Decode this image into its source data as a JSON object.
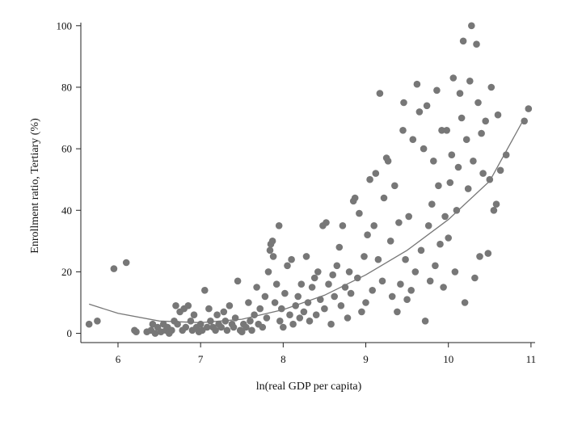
{
  "chart_data": {
    "type": "scatter",
    "title": "",
    "xlabel": "ln(real GDP per capita)",
    "ylabel": "Enrollment ratio, Tertiary (%)",
    "xlim": [
      5.55,
      11.05
    ],
    "ylim": [
      -3,
      101
    ],
    "xticks": [
      6,
      7,
      8,
      9,
      10,
      11
    ],
    "yticks": [
      0,
      20,
      40,
      60,
      80,
      100
    ],
    "grid": false,
    "legend": "none",
    "colors": {
      "points": "#777777",
      "fit_line": "#777777",
      "axes": "#222222"
    },
    "fit": {
      "type": "quadratic",
      "points": [
        [
          5.65,
          9.5
        ],
        [
          6.0,
          6.5
        ],
        [
          6.5,
          4.0
        ],
        [
          7.0,
          3.5
        ],
        [
          7.5,
          4.6
        ],
        [
          8.0,
          7.7
        ],
        [
          8.5,
          12.4
        ],
        [
          9.0,
          19.0
        ],
        [
          9.5,
          27.0
        ],
        [
          10.0,
          37.0
        ],
        [
          10.5,
          49.5
        ],
        [
          10.9,
          69.0
        ]
      ]
    },
    "series": [
      {
        "points": [
          [
            5.65,
            3
          ],
          [
            5.75,
            4
          ],
          [
            5.95,
            21
          ],
          [
            6.1,
            23
          ],
          [
            6.2,
            1
          ],
          [
            6.22,
            0.5
          ],
          [
            6.35,
            0.5
          ],
          [
            6.4,
            1
          ],
          [
            6.42,
            3
          ],
          [
            6.45,
            0
          ],
          [
            6.48,
            2
          ],
          [
            6.52,
            0.5
          ],
          [
            6.55,
            3
          ],
          [
            6.58,
            1
          ],
          [
            6.6,
            2
          ],
          [
            6.62,
            0
          ],
          [
            6.65,
            1
          ],
          [
            6.68,
            4
          ],
          [
            6.7,
            9
          ],
          [
            6.72,
            3
          ],
          [
            6.75,
            7
          ],
          [
            6.78,
            1
          ],
          [
            6.8,
            8
          ],
          [
            6.82,
            2
          ],
          [
            6.85,
            9
          ],
          [
            6.88,
            4
          ],
          [
            6.9,
            1
          ],
          [
            6.92,
            6
          ],
          [
            6.95,
            2
          ],
          [
            6.98,
            0.5
          ],
          [
            7.0,
            3
          ],
          [
            7.02,
            1
          ],
          [
            7.05,
            14
          ],
          [
            7.08,
            2
          ],
          [
            7.1,
            8
          ],
          [
            7.12,
            4
          ],
          [
            7.15,
            2
          ],
          [
            7.18,
            1
          ],
          [
            7.2,
            6
          ],
          [
            7.22,
            3
          ],
          [
            7.25,
            2
          ],
          [
            7.28,
            7
          ],
          [
            7.3,
            4
          ],
          [
            7.32,
            1
          ],
          [
            7.35,
            9
          ],
          [
            7.38,
            3
          ],
          [
            7.4,
            2
          ],
          [
            7.42,
            5
          ],
          [
            7.45,
            17
          ],
          [
            7.48,
            1
          ],
          [
            7.5,
            0.5
          ],
          [
            7.52,
            3
          ],
          [
            7.55,
            2
          ],
          [
            7.58,
            10
          ],
          [
            7.6,
            4
          ],
          [
            7.62,
            1
          ],
          [
            7.65,
            6
          ],
          [
            7.68,
            15
          ],
          [
            7.7,
            3
          ],
          [
            7.72,
            8
          ],
          [
            7.75,
            2
          ],
          [
            7.78,
            12
          ],
          [
            7.8,
            5
          ],
          [
            7.82,
            20
          ],
          [
            7.84,
            27
          ],
          [
            7.85,
            29
          ],
          [
            7.87,
            30
          ],
          [
            7.88,
            25
          ],
          [
            7.9,
            10
          ],
          [
            7.92,
            16
          ],
          [
            7.95,
            35
          ],
          [
            7.96,
            4
          ],
          [
            7.98,
            8
          ],
          [
            8.0,
            2
          ],
          [
            8.02,
            13
          ],
          [
            8.05,
            22
          ],
          [
            8.08,
            6
          ],
          [
            8.1,
            24
          ],
          [
            8.12,
            3
          ],
          [
            8.15,
            9
          ],
          [
            8.18,
            12
          ],
          [
            8.2,
            5
          ],
          [
            8.22,
            16
          ],
          [
            8.25,
            7
          ],
          [
            8.28,
            25
          ],
          [
            8.3,
            10
          ],
          [
            8.32,
            4
          ],
          [
            8.35,
            15
          ],
          [
            8.38,
            18
          ],
          [
            8.4,
            6
          ],
          [
            8.42,
            20
          ],
          [
            8.45,
            11
          ],
          [
            8.48,
            35
          ],
          [
            8.5,
            8
          ],
          [
            8.52,
            36
          ],
          [
            8.55,
            16
          ],
          [
            8.58,
            3
          ],
          [
            8.6,
            19
          ],
          [
            8.62,
            12
          ],
          [
            8.65,
            22
          ],
          [
            8.68,
            28
          ],
          [
            8.7,
            9
          ],
          [
            8.72,
            35
          ],
          [
            8.75,
            15
          ],
          [
            8.78,
            5
          ],
          [
            8.8,
            20
          ],
          [
            8.82,
            13
          ],
          [
            8.85,
            43
          ],
          [
            8.87,
            44
          ],
          [
            8.9,
            18
          ],
          [
            8.92,
            39
          ],
          [
            8.95,
            7
          ],
          [
            8.98,
            25
          ],
          [
            9.0,
            10
          ],
          [
            9.02,
            32
          ],
          [
            9.05,
            50
          ],
          [
            9.08,
            14
          ],
          [
            9.1,
            35
          ],
          [
            9.12,
            52
          ],
          [
            9.15,
            24
          ],
          [
            9.17,
            78
          ],
          [
            9.2,
            17
          ],
          [
            9.22,
            44
          ],
          [
            9.25,
            57
          ],
          [
            9.27,
            56
          ],
          [
            9.3,
            30
          ],
          [
            9.32,
            12
          ],
          [
            9.35,
            48
          ],
          [
            9.38,
            7
          ],
          [
            9.4,
            36
          ],
          [
            9.42,
            16
          ],
          [
            9.45,
            66
          ],
          [
            9.46,
            75
          ],
          [
            9.48,
            24
          ],
          [
            9.5,
            11
          ],
          [
            9.52,
            38
          ],
          [
            9.55,
            14
          ],
          [
            9.57,
            63
          ],
          [
            9.6,
            20
          ],
          [
            9.62,
            81
          ],
          [
            9.65,
            72
          ],
          [
            9.67,
            27
          ],
          [
            9.7,
            60
          ],
          [
            9.72,
            4
          ],
          [
            9.74,
            74
          ],
          [
            9.76,
            35
          ],
          [
            9.78,
            17
          ],
          [
            9.8,
            42
          ],
          [
            9.82,
            56
          ],
          [
            9.84,
            22
          ],
          [
            9.86,
            79
          ],
          [
            9.88,
            48
          ],
          [
            9.9,
            29
          ],
          [
            9.92,
            66
          ],
          [
            9.94,
            15
          ],
          [
            9.96,
            38
          ],
          [
            9.98,
            66
          ],
          [
            10.0,
            31
          ],
          [
            10.02,
            49
          ],
          [
            10.04,
            58
          ],
          [
            10.06,
            83
          ],
          [
            10.08,
            20
          ],
          [
            10.1,
            40
          ],
          [
            10.12,
            54
          ],
          [
            10.14,
            78
          ],
          [
            10.16,
            70
          ],
          [
            10.18,
            95
          ],
          [
            10.2,
            10
          ],
          [
            10.22,
            63
          ],
          [
            10.24,
            47
          ],
          [
            10.26,
            82
          ],
          [
            10.28,
            100
          ],
          [
            10.3,
            56
          ],
          [
            10.32,
            18
          ],
          [
            10.34,
            94
          ],
          [
            10.36,
            75
          ],
          [
            10.38,
            25
          ],
          [
            10.4,
            65
          ],
          [
            10.42,
            52
          ],
          [
            10.45,
            69
          ],
          [
            10.48,
            26
          ],
          [
            10.5,
            50
          ],
          [
            10.52,
            80
          ],
          [
            10.55,
            40
          ],
          [
            10.58,
            42
          ],
          [
            10.6,
            71
          ],
          [
            10.63,
            53
          ],
          [
            10.7,
            58
          ],
          [
            10.92,
            69
          ],
          [
            10.97,
            73
          ]
        ]
      }
    ]
  }
}
